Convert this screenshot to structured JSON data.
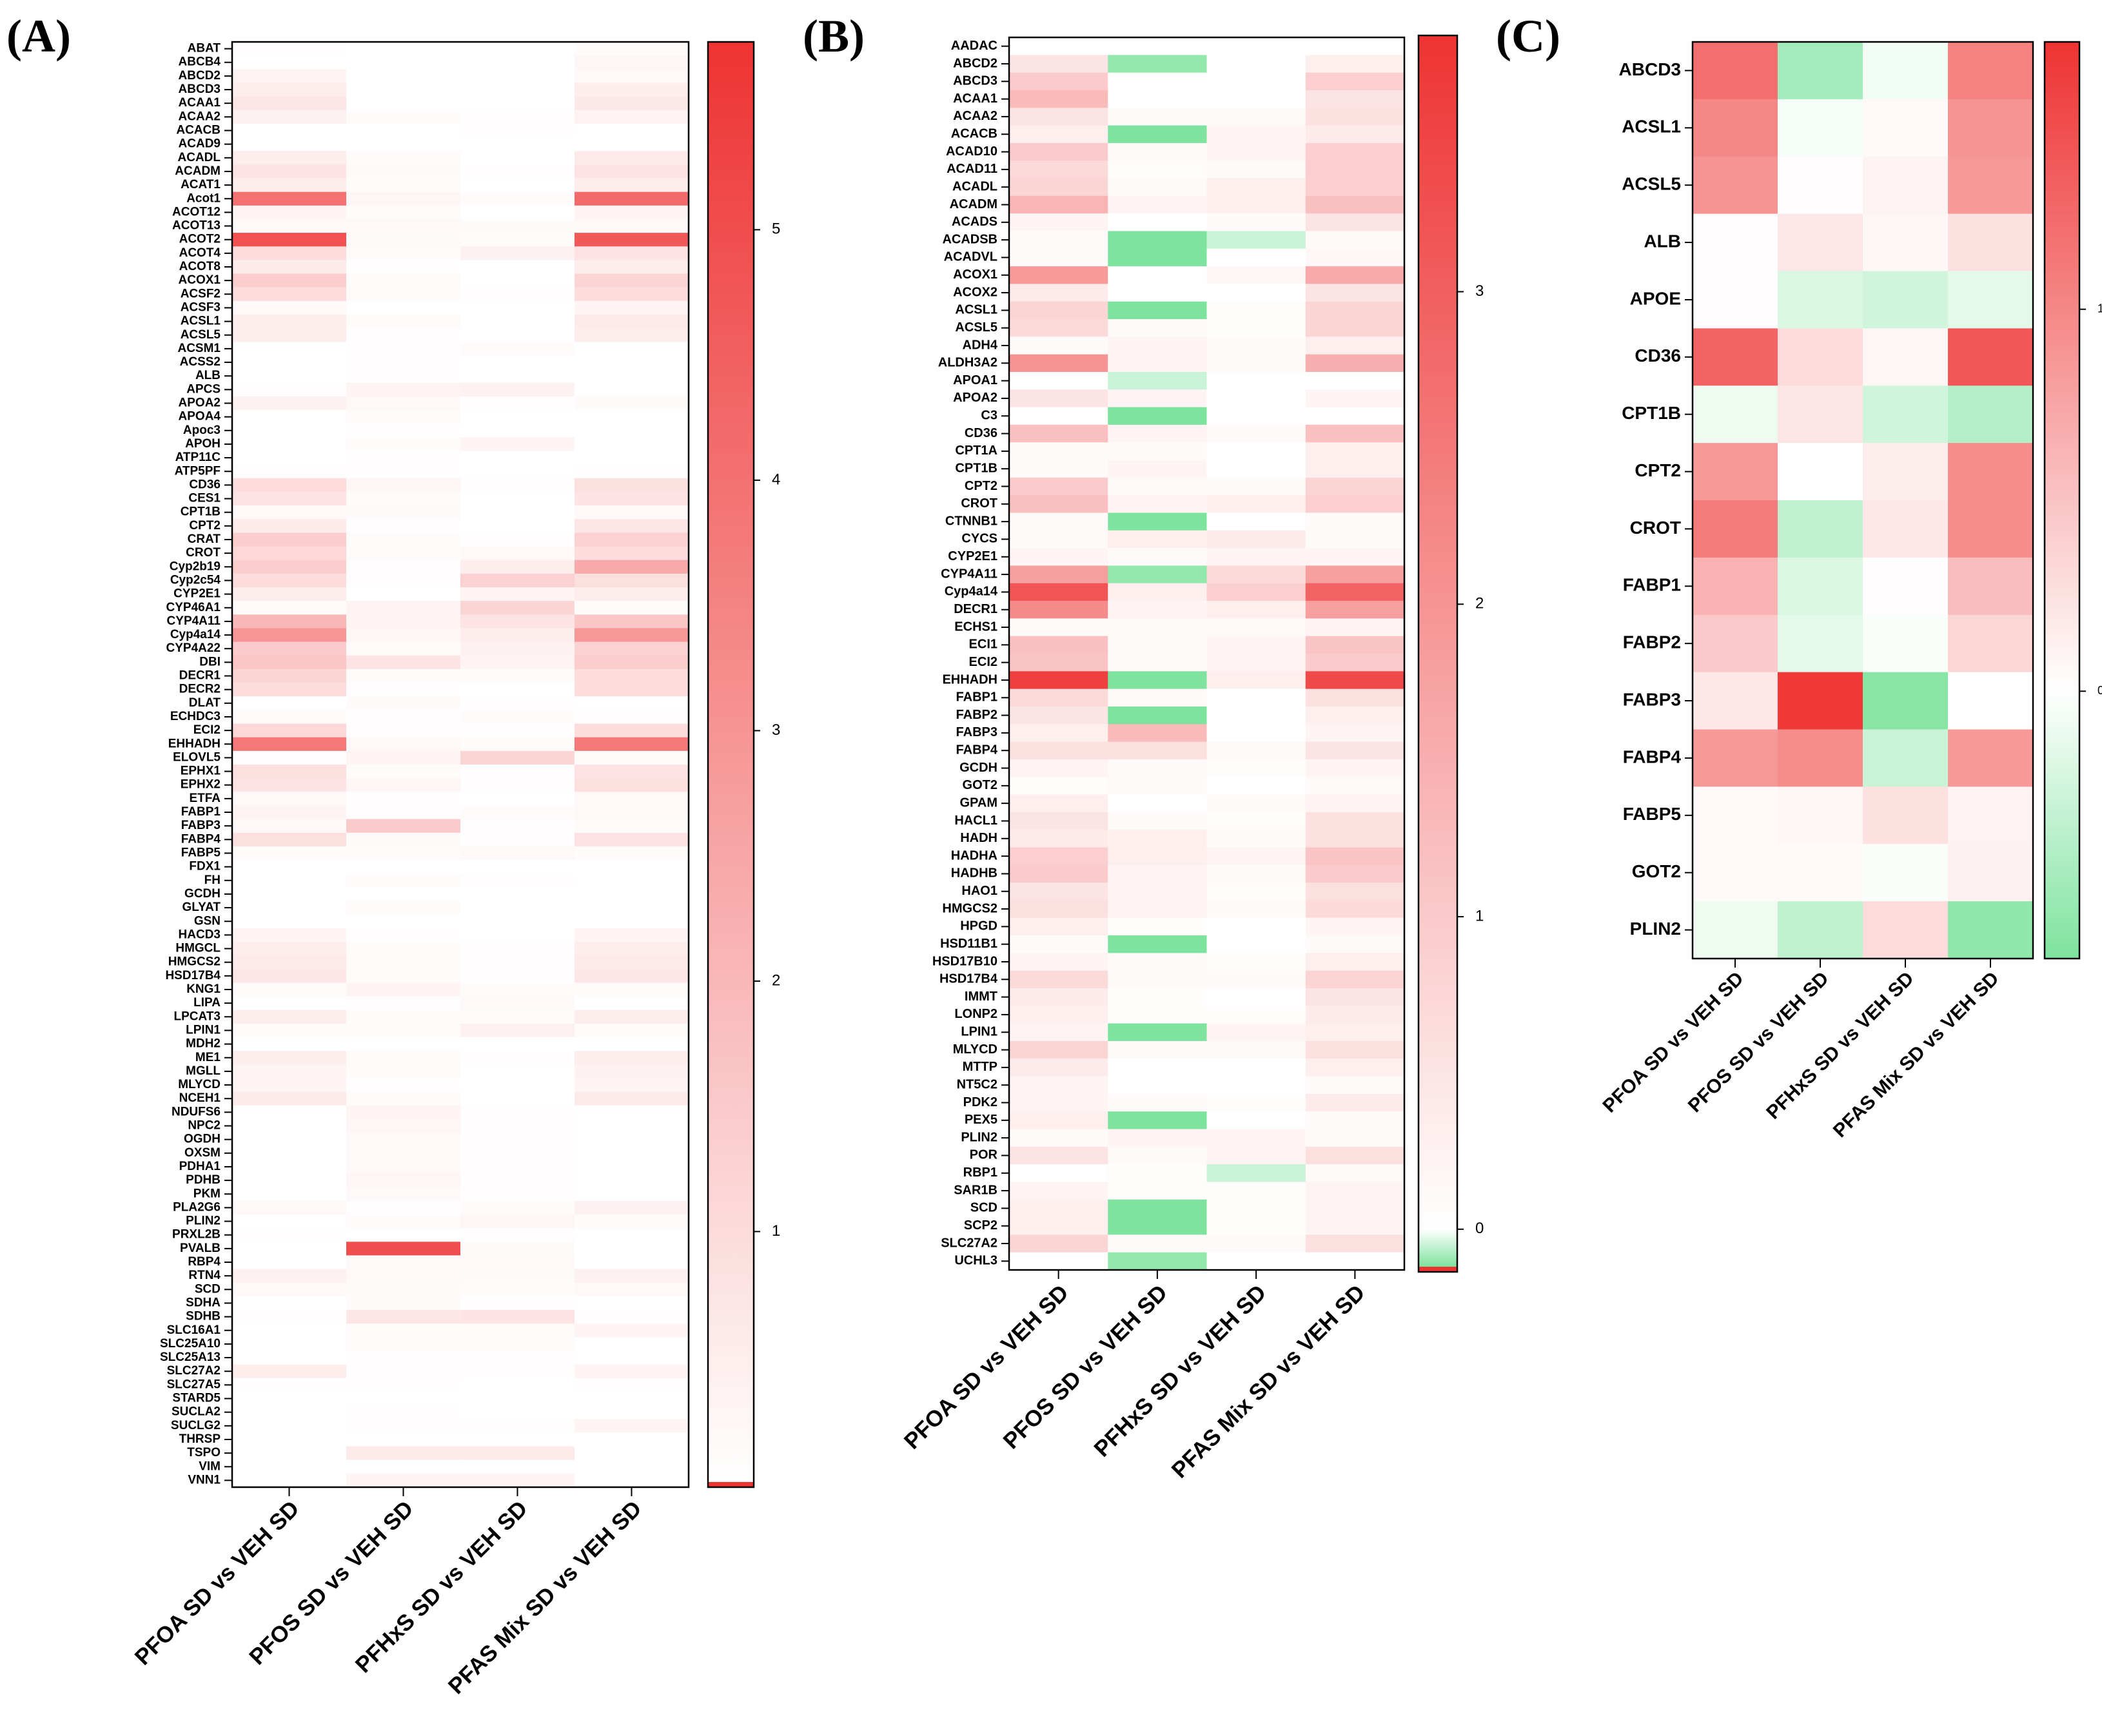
{
  "figure": {
    "panel_letters": [
      "(A)",
      "(B)",
      "(C)"
    ]
  },
  "colors": {
    "low": "#7ee39e",
    "zero": "#ffffff",
    "high": "#ee3333"
  },
  "chart_data": [
    {
      "panel": "A",
      "type": "heatmap",
      "columns": [
        "PFOA SD vs VEH SD",
        "PFOS SD vs VEH SD",
        "PFHxS SD vs VEH SD",
        "PFAS Mix SD vs VEH SD"
      ],
      "rows": [
        "ABAT",
        "ABCB4",
        "ABCD2",
        "ABCD3",
        "ACAA1",
        "ACAA2",
        "ACACB",
        "ACAD9",
        "ACADL",
        "ACADM",
        "ACAT1",
        "Acot1",
        "ACOT12",
        "ACOT13",
        "ACOT2",
        "ACOT4",
        "ACOT8",
        "ACOX1",
        "ACSF2",
        "ACSF3",
        "ACSL1",
        "ACSL5",
        "ACSM1",
        "ACSS2",
        "ALB",
        "APCS",
        "APOA2",
        "APOA4",
        "Apoc3",
        "APOH",
        "ATP11C",
        "ATP5PF",
        "CD36",
        "CES1",
        "CPT1B",
        "CPT2",
        "CRAT",
        "CROT",
        "Cyp2b19",
        "Cyp2c54",
        "CYP2E1",
        "CYP46A1",
        "CYP4A11",
        "Cyp4a14",
        "CYP4A22",
        "DBI",
        "DECR1",
        "DECR2",
        "DLAT",
        "ECHDC3",
        "ECI2",
        "EHHADH",
        "ELOVL5",
        "EPHX1",
        "EPHX2",
        "ETFA",
        "FABP1",
        "FABP3",
        "FABP4",
        "FABP5",
        "FDX1",
        "FH",
        "GCDH",
        "GLYAT",
        "GSN",
        "HACD3",
        "HMGCL",
        "HMGCS2",
        "HSD17B4",
        "KNG1",
        "LIPA",
        "LPCAT3",
        "LPIN1",
        "MDH2",
        "ME1",
        "MGLL",
        "MLYCD",
        "NCEH1",
        "NDUFS6",
        "NPC2",
        "OGDH",
        "OXSM",
        "PDHA1",
        "PDHB",
        "PKM",
        "PLA2G6",
        "PLIN2",
        "PRXL2B",
        "PVALB",
        "RBP4",
        "RTN4",
        "SCD",
        "SDHA",
        "SDHB",
        "SLC16A1",
        "SLC25A10",
        "SLC25A13",
        "SLC27A2",
        "SLC27A5",
        "STARD5",
        "SUCLA2",
        "SUCLG2",
        "THRSP",
        "TSPO",
        "VIM",
        "VNN1"
      ],
      "values": [
        [
          0.05,
          0,
          0,
          0.1
        ],
        [
          0,
          0,
          0,
          0.25
        ],
        [
          0.35,
          0,
          0,
          0.2
        ],
        [
          0.5,
          0,
          0,
          0.5
        ],
        [
          0.7,
          0,
          0,
          0.65
        ],
        [
          0.4,
          0.1,
          0.05,
          0.35
        ],
        [
          0,
          0,
          0.05,
          0
        ],
        [
          0,
          0,
          0,
          0
        ],
        [
          0.5,
          0.1,
          0,
          0.6
        ],
        [
          0.8,
          0.15,
          0.05,
          0.8
        ],
        [
          0.5,
          0.1,
          0,
          0.5
        ],
        [
          4.0,
          0.25,
          0.1,
          4.2
        ],
        [
          0.3,
          0.1,
          0,
          0.3
        ],
        [
          0.2,
          0.2,
          0.15,
          0.2
        ],
        [
          4.9,
          0.15,
          0.1,
          4.7
        ],
        [
          1.0,
          0.1,
          0.4,
          0.8
        ],
        [
          0.6,
          0.05,
          0,
          0.5
        ],
        [
          1.4,
          0.1,
          0,
          1.2
        ],
        [
          1.0,
          0.1,
          0.05,
          1.0
        ],
        [
          0.2,
          0,
          0,
          0.3
        ],
        [
          0.5,
          0.1,
          0,
          0.6
        ],
        [
          0.5,
          0.05,
          0,
          0.5
        ],
        [
          0,
          0.05,
          0.1,
          0
        ],
        [
          0,
          0.05,
          0,
          0
        ],
        [
          0,
          0.05,
          0,
          0
        ],
        [
          0.05,
          0.3,
          0.4,
          0
        ],
        [
          0.4,
          0.2,
          0.05,
          0.15
        ],
        [
          0,
          0.1,
          0,
          0
        ],
        [
          0,
          0.05,
          0,
          0
        ],
        [
          0,
          0.1,
          0.3,
          0
        ],
        [
          0,
          0.05,
          0,
          0
        ],
        [
          0.05,
          0.05,
          0,
          0.05
        ],
        [
          1.0,
          0.25,
          0.05,
          0.9
        ],
        [
          0.8,
          0.1,
          0,
          0.8
        ],
        [
          0.2,
          0.15,
          0,
          0.2
        ],
        [
          0.6,
          0.05,
          0,
          0.7
        ],
        [
          1.4,
          0.1,
          0.05,
          1.3
        ],
        [
          1.1,
          0.1,
          0.2,
          1.0
        ],
        [
          1.4,
          0.05,
          0.5,
          2.4
        ],
        [
          1.0,
          0.05,
          1.3,
          0.9
        ],
        [
          0.5,
          0,
          0.3,
          0.5
        ],
        [
          0.1,
          0.3,
          1.2,
          0.1
        ],
        [
          2.0,
          0.3,
          0.8,
          1.6
        ],
        [
          3.0,
          0.25,
          0.5,
          2.9
        ],
        [
          1.5,
          0.1,
          0.4,
          1.3
        ],
        [
          1.6,
          0.8,
          0.3,
          1.4
        ],
        [
          1.2,
          0.1,
          0.1,
          1.0
        ],
        [
          1.0,
          0.05,
          0,
          1.0
        ],
        [
          0,
          0.15,
          0.05,
          0
        ],
        [
          0.1,
          0.05,
          0.1,
          0.05
        ],
        [
          1.1,
          0.05,
          0.05,
          1.0
        ],
        [
          3.8,
          0.2,
          0.1,
          3.8
        ],
        [
          0.05,
          0.3,
          1.2,
          0.1
        ],
        [
          0.9,
          0.1,
          0.05,
          0.8
        ],
        [
          0.8,
          0.25,
          0.05,
          0.9
        ],
        [
          0.2,
          0.05,
          0,
          0.2
        ],
        [
          0.3,
          0.05,
          0.1,
          0.2
        ],
        [
          0.2,
          1.5,
          0.05,
          0.1
        ],
        [
          0.9,
          0.15,
          0.05,
          0.8
        ],
        [
          0.1,
          0.1,
          0.2,
          0.1
        ],
        [
          0,
          0,
          0,
          0
        ],
        [
          0,
          0.1,
          0.05,
          0
        ],
        [
          0,
          0,
          0,
          0
        ],
        [
          0,
          0.1,
          0,
          0
        ],
        [
          0,
          0,
          0,
          0
        ],
        [
          0.3,
          0.05,
          0,
          0.3
        ],
        [
          0.5,
          0.1,
          0.05,
          0.5
        ],
        [
          0.6,
          0.1,
          0.05,
          0.6
        ],
        [
          0.7,
          0.1,
          0.05,
          0.7
        ],
        [
          0.1,
          0.3,
          0.1,
          0.1
        ],
        [
          0,
          0.05,
          0.2,
          0
        ],
        [
          0.5,
          0.1,
          0.1,
          0.5
        ],
        [
          0.1,
          0.1,
          0.4,
          0.1
        ],
        [
          0,
          0,
          0,
          0
        ],
        [
          0.5,
          0.1,
          0.05,
          0.5
        ],
        [
          0.3,
          0.1,
          0,
          0.4
        ],
        [
          0.3,
          0.05,
          0,
          0.3
        ],
        [
          0.6,
          0.1,
          0,
          0.6
        ],
        [
          0,
          0.3,
          0.05,
          0
        ],
        [
          0,
          0.25,
          0.05,
          0
        ],
        [
          0,
          0.2,
          0.05,
          0
        ],
        [
          0,
          0.2,
          0.05,
          0
        ],
        [
          0,
          0.2,
          0.05,
          0
        ],
        [
          0,
          0.25,
          0.05,
          0
        ],
        [
          0,
          0.2,
          0.05,
          0
        ],
        [
          0.2,
          0.05,
          0.1,
          0.4
        ],
        [
          0,
          0.1,
          0.25,
          0.1
        ],
        [
          0.05,
          0,
          0.05,
          0
        ],
        [
          0,
          5.0,
          0.15,
          0
        ],
        [
          0,
          0.2,
          0.2,
          0
        ],
        [
          0.4,
          0.2,
          0.15,
          0.4
        ],
        [
          0.2,
          0.15,
          0.1,
          0.2
        ],
        [
          0,
          0.15,
          0.05,
          0
        ],
        [
          0.05,
          0.7,
          0.8,
          0.05
        ],
        [
          0,
          0.1,
          0.1,
          0.3
        ],
        [
          0,
          0.1,
          0.1,
          0
        ],
        [
          0,
          0.05,
          0.05,
          0
        ],
        [
          0.5,
          0.05,
          0.05,
          0.3
        ],
        [
          0.05,
          0.05,
          0,
          0.05
        ],
        [
          0,
          0,
          0,
          0
        ],
        [
          0,
          0.05,
          0,
          0
        ],
        [
          0,
          0.05,
          0.05,
          0.3
        ],
        [
          0,
          0,
          0,
          0
        ],
        [
          0,
          0.6,
          0.6,
          0
        ],
        [
          0,
          0,
          0,
          0
        ],
        [
          0,
          0.3,
          0.3,
          0
        ]
      ],
      "colorbar": {
        "min": 0,
        "max": 5.75,
        "ticks": [
          1,
          2,
          3,
          4,
          5
        ],
        "low_cap": 0
      }
    },
    {
      "panel": "B",
      "type": "heatmap",
      "columns": [
        "PFOA SD vs VEH SD",
        "PFOS SD vs VEH SD",
        "PFHxS SD vs VEH SD",
        "PFAS Mix SD vs VEH SD"
      ],
      "rows": [
        "AADAC",
        "ABCD2",
        "ABCD3",
        "ACAA1",
        "ACAA2",
        "ACACB",
        "ACAD10",
        "ACAD11",
        "ACADL",
        "ACADM",
        "ACADS",
        "ACADSB",
        "ACADVL",
        "ACOX1",
        "ACOX2",
        "ACSL1",
        "ACSL5",
        "ADH4",
        "ALDH3A2",
        "APOA1",
        "APOA2",
        "C3",
        "CD36",
        "CPT1A",
        "CPT1B",
        "CPT2",
        "CROT",
        "CTNNB1",
        "CYCS",
        "CYP2E1",
        "CYP4A11",
        "Cyp4a14",
        "DECR1",
        "ECHS1",
        "ECI1",
        "ECI2",
        "EHHADH",
        "FABP1",
        "FABP2",
        "FABP3",
        "FABP4",
        "GCDH",
        "GOT2",
        "GPAM",
        "HACL1",
        "HADH",
        "HADHA",
        "HADHB",
        "HAO1",
        "HMGCS2",
        "HPGD",
        "HSD11B1",
        "HSD17B10",
        "HSD17B4",
        "IMMT",
        "LONP2",
        "LPIN1",
        "MLYCD",
        "MTTP",
        "NT5C2",
        "PDK2",
        "PEX5",
        "PLIN2",
        "POR",
        "RBP1",
        "SAR1B",
        "SCD",
        "SCP2",
        "SLC27A2",
        "UCHL3"
      ],
      "values": [
        [
          0,
          0,
          0,
          0
        ],
        [
          0.5,
          -0.1,
          0,
          0.3
        ],
        [
          1.0,
          0,
          0,
          0.9
        ],
        [
          1.3,
          0,
          0,
          0.5
        ],
        [
          0.5,
          0.1,
          0.1,
          0.6
        ],
        [
          0.3,
          -0.5,
          0.2,
          0.4
        ],
        [
          1.0,
          0.1,
          0.2,
          0.9
        ],
        [
          0.7,
          0.05,
          0.1,
          0.9
        ],
        [
          0.8,
          0.1,
          0.3,
          0.9
        ],
        [
          1.4,
          0.2,
          0.3,
          1.2
        ],
        [
          0.2,
          0,
          0.1,
          0.5
        ],
        [
          0.1,
          -0.3,
          -0.05,
          0.1
        ],
        [
          0.1,
          -0.2,
          0,
          0.15
        ],
        [
          1.9,
          0,
          0.15,
          1.6
        ],
        [
          0.4,
          0,
          0,
          0.5
        ],
        [
          0.8,
          -0.3,
          0.05,
          0.8
        ],
        [
          0.7,
          0.1,
          0.05,
          0.8
        ],
        [
          0.1,
          0.2,
          0.1,
          0.3
        ],
        [
          2.0,
          0.2,
          0.1,
          1.5
        ],
        [
          0,
          -0.05,
          0,
          0
        ],
        [
          0.5,
          0.2,
          0,
          0.2
        ],
        [
          0,
          -0.35,
          0,
          0
        ],
        [
          1.2,
          0.2,
          0.1,
          1.2
        ],
        [
          0.1,
          0.1,
          0,
          0.3
        ],
        [
          0.1,
          0.2,
          0,
          0.3
        ],
        [
          1.0,
          0.1,
          0.1,
          0.8
        ],
        [
          1.2,
          0.2,
          0.3,
          0.9
        ],
        [
          0.1,
          -0.6,
          0,
          0.1
        ],
        [
          0.1,
          0.3,
          0.4,
          0.1
        ],
        [
          0.2,
          0.1,
          0.2,
          0.2
        ],
        [
          1.8,
          -0.1,
          0.7,
          1.8
        ],
        [
          3.2,
          0.3,
          0.9,
          2.9
        ],
        [
          2.2,
          0.2,
          0.3,
          1.8
        ],
        [
          0.1,
          0.1,
          0.1,
          0.2
        ],
        [
          1.2,
          0.1,
          0.2,
          1.1
        ],
        [
          1.1,
          0.1,
          0.2,
          1.0
        ],
        [
          3.6,
          -0.4,
          0.3,
          3.4
        ],
        [
          0.7,
          0.1,
          0,
          0.6
        ],
        [
          0.5,
          -0.6,
          0,
          0.3
        ],
        [
          0.3,
          1.3,
          0,
          0.2
        ],
        [
          0.6,
          0.6,
          0.1,
          0.5
        ],
        [
          0.2,
          0.1,
          0.05,
          0.2
        ],
        [
          0.05,
          0.1,
          0,
          0.1
        ],
        [
          0.3,
          0,
          0.1,
          0.2
        ],
        [
          0.5,
          0.1,
          0.05,
          0.6
        ],
        [
          0.4,
          0.3,
          0.1,
          0.6
        ],
        [
          0.9,
          0.3,
          0.2,
          1.1
        ],
        [
          1.0,
          0.2,
          0.1,
          1.0
        ],
        [
          0.5,
          0.2,
          0.05,
          0.6
        ],
        [
          0.6,
          0.2,
          0.1,
          0.7
        ],
        [
          0.3,
          0.05,
          0,
          0.2
        ],
        [
          0.1,
          -0.5,
          0,
          0.1
        ],
        [
          0.2,
          0.1,
          0.05,
          0.3
        ],
        [
          0.7,
          0.1,
          0.1,
          0.8
        ],
        [
          0.4,
          0.05,
          0,
          0.5
        ],
        [
          0.3,
          0.05,
          0.05,
          0.4
        ],
        [
          0.2,
          -0.45,
          0.2,
          0.3
        ],
        [
          0.8,
          0.1,
          0.1,
          0.6
        ],
        [
          0.4,
          0,
          0,
          0.3
        ],
        [
          0.2,
          0,
          0,
          0.1
        ],
        [
          0.2,
          0.1,
          0.05,
          0.4
        ],
        [
          0.3,
          -0.2,
          0,
          0.1
        ],
        [
          0.1,
          0.2,
          0.2,
          0.1
        ],
        [
          0.5,
          0.1,
          0.2,
          0.6
        ],
        [
          0,
          0.05,
          -0.05,
          0.1
        ],
        [
          0.2,
          0.05,
          0.05,
          0.2
        ],
        [
          0.3,
          -0.15,
          0.05,
          0.2
        ],
        [
          0.3,
          -0.2,
          0.05,
          0.2
        ],
        [
          0.8,
          0.1,
          0.1,
          0.6
        ],
        [
          0,
          -0.1,
          0,
          0
        ]
      ],
      "colorbar": {
        "min": -0.12,
        "max": 3.82,
        "ticks": [
          0,
          1,
          2,
          3
        ],
        "low_cap": -0.12
      }
    },
    {
      "panel": "C",
      "type": "heatmap",
      "columns": [
        "PFOA SD vs VEH SD",
        "PFOS SD vs VEH SD",
        "PFHxS SD vs VEH SD",
        "PFAS Mix SD vs VEH SD"
      ],
      "rows": [
        "ABCD3",
        "ACSL1",
        "ACSL5",
        "ALB",
        "APOE",
        "CD36",
        "CPT1B",
        "CPT2",
        "CROT",
        "FABP1",
        "FABP2",
        "FABP3",
        "FABP4",
        "FABP5",
        "GOT2",
        "PLIN2"
      ],
      "values": [
        [
          1.2,
          -0.5,
          -0.08,
          1.05
        ],
        [
          1.0,
          -0.06,
          0.05,
          0.9
        ],
        [
          0.9,
          0.02,
          0.1,
          0.85
        ],
        [
          0.02,
          0.2,
          0.07,
          0.25
        ],
        [
          0.02,
          -0.2,
          -0.25,
          -0.15
        ],
        [
          1.3,
          0.3,
          0.08,
          1.4
        ],
        [
          -0.1,
          0.22,
          -0.25,
          -0.4
        ],
        [
          0.85,
          0,
          0.15,
          0.95
        ],
        [
          1.1,
          -0.35,
          0.2,
          0.95
        ],
        [
          0.65,
          -0.2,
          0.02,
          0.55
        ],
        [
          0.45,
          -0.15,
          -0.03,
          0.35
        ],
        [
          0.2,
          1.65,
          -0.65,
          0
        ],
        [
          0.85,
          0.95,
          -0.3,
          0.85
        ],
        [
          0.05,
          0.07,
          0.25,
          0.1
        ],
        [
          0.05,
          0.05,
          -0.03,
          0.12
        ],
        [
          -0.1,
          -0.35,
          0.3,
          -0.6
        ]
      ],
      "colorbar": {
        "min": -0.7,
        "max": 1.7,
        "ticks": [
          0,
          1
        ]
      }
    }
  ]
}
